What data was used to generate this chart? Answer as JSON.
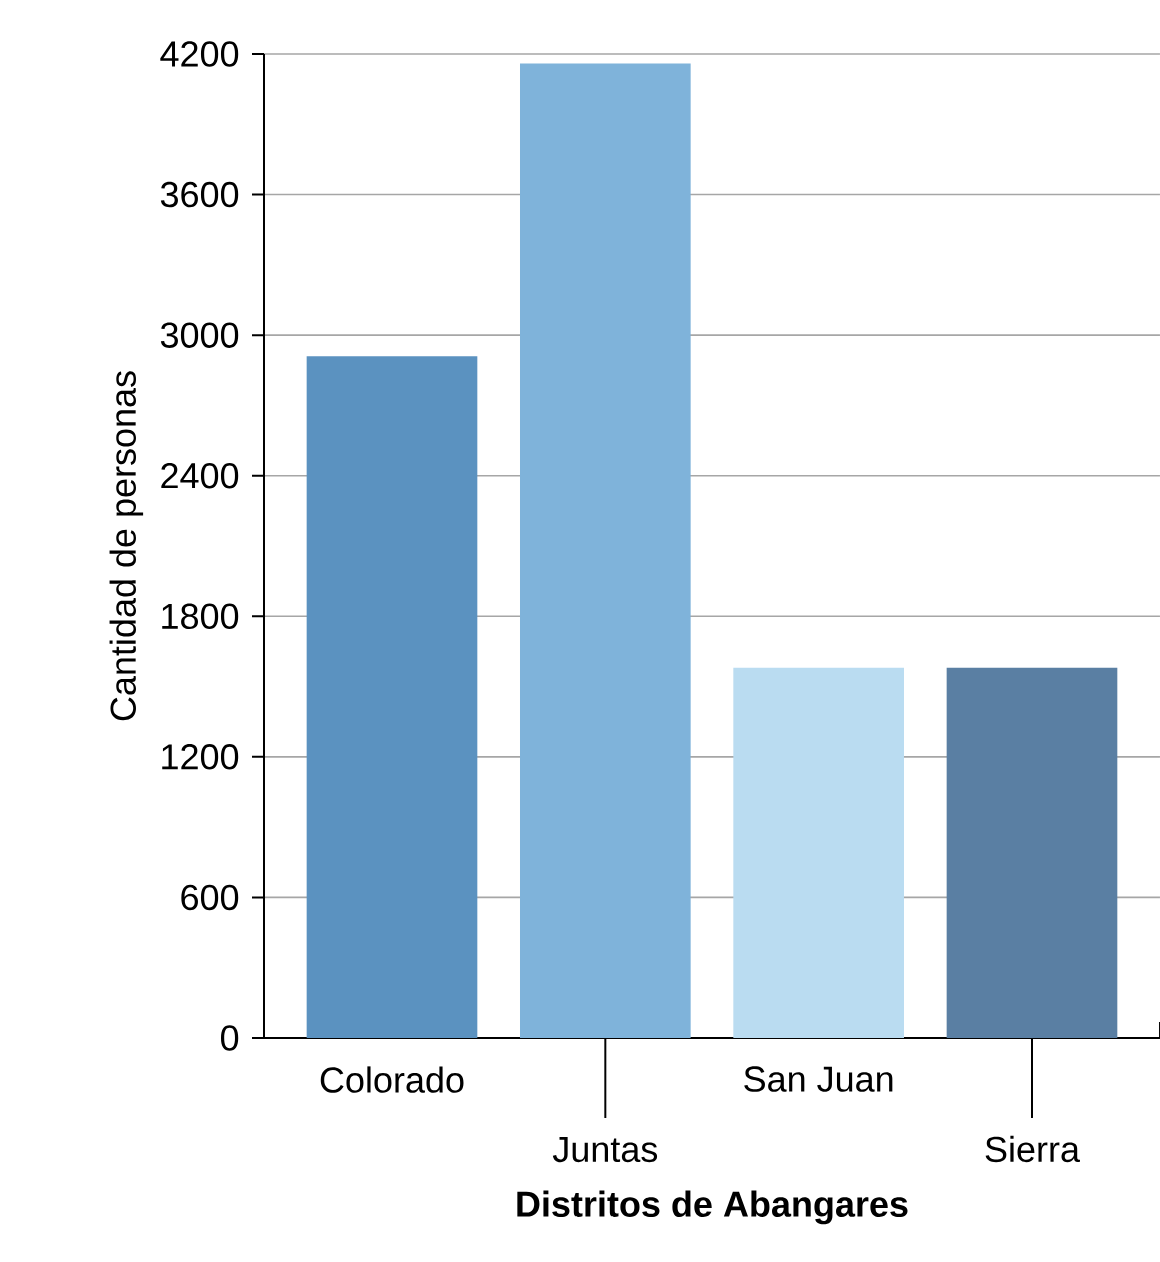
{
  "chart_data": {
    "type": "bar",
    "xlabel": "Distritos de Abangares",
    "ylabel": "Cantidad de personas",
    "categories": [
      "Colorado",
      "Juntas",
      "San Juan",
      "Sierra"
    ],
    "values": [
      2910,
      4160,
      1580,
      1580
    ],
    "colors": [
      "#5b92c0",
      "#7fb3da",
      "#badcf1",
      "#5a7fa3"
    ],
    "ylim": [
      0,
      4200
    ],
    "yticks": [
      0,
      600,
      1200,
      1800,
      2400,
      3000,
      3600,
      4200
    ],
    "grid": "y"
  }
}
